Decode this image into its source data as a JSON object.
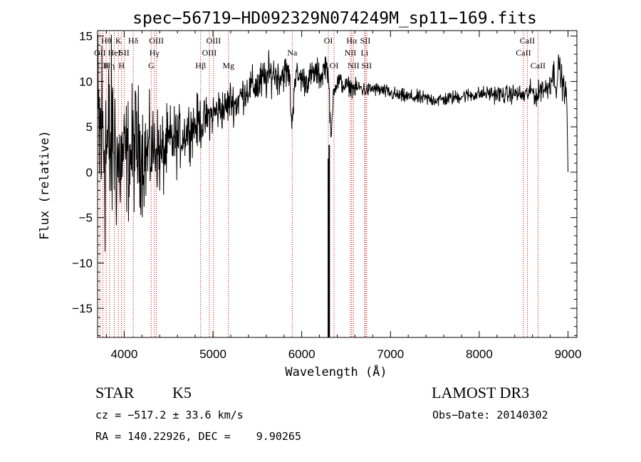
{
  "chart_data": {
    "type": "line",
    "title": "spec−56719−HD092329N074249M_sp11−169.fits",
    "xlabel": "Wavelength (Å)",
    "ylabel": "Flux (relative)",
    "xlim": [
      3700,
      9100
    ],
    "ylim": [
      -18.2,
      15.6
    ],
    "xticks": [
      4000,
      5000,
      6000,
      7000,
      8000,
      9000
    ],
    "xtick_labels": [
      "4000",
      "5000",
      "6000",
      "7000",
      "8000",
      "9000"
    ],
    "yticks": [
      -15,
      -10,
      -5,
      0,
      5,
      10,
      15
    ],
    "ytick_labels": [
      "−15",
      "−10",
      "−5",
      "0",
      "5",
      "10",
      "15"
    ],
    "series": [
      {
        "name": "spectrum",
        "x": [
          3700,
          3760,
          3820,
          3880,
          3940,
          4000,
          4060,
          4120,
          4180,
          4240,
          4300,
          4360,
          4420,
          4480,
          4540,
          4600,
          4660,
          4720,
          4780,
          4840,
          4900,
          4960,
          5020,
          5080,
          5140,
          5200,
          5260,
          5320,
          5380,
          5440,
          5500,
          5560,
          5620,
          5680,
          5740,
          5800,
          5860,
          5890,
          5920,
          5980,
          6040,
          6100,
          6160,
          6220,
          6270,
          6300,
          6330,
          6360,
          6420,
          6480,
          6540,
          6600,
          6660,
          6720,
          6800,
          6900,
          7000,
          7100,
          7200,
          7300,
          7400,
          7500,
          7600,
          7700,
          7800,
          7900,
          8000,
          8100,
          8200,
          8300,
          8400,
          8500,
          8600,
          8650,
          8700,
          8750,
          8800,
          8840,
          8870,
          8900,
          8930,
          8960,
          8985,
          9000
        ],
        "y": [
          3.2,
          4.5,
          2.0,
          3.8,
          0.5,
          2.0,
          1.5,
          3.0,
          2.5,
          1.8,
          2.2,
          3.0,
          1.5,
          2.8,
          3.5,
          3.5,
          4.0,
          4.8,
          5.0,
          5.5,
          5.5,
          6.2,
          6.5,
          7.0,
          7.0,
          8.0,
          7.5,
          8.5,
          9.0,
          9.5,
          9.5,
          10.0,
          10.5,
          11.0,
          10.5,
          11.0,
          10.8,
          4.8,
          10.5,
          10.5,
          10.0,
          10.5,
          11.0,
          10.5,
          12.0,
          11.0,
          3.0,
          9.5,
          10.0,
          9.5,
          9.5,
          9.2,
          9.3,
          9.0,
          9.2,
          9.0,
          8.7,
          8.4,
          8.3,
          8.2,
          8.1,
          8.0,
          8.0,
          8.2,
          8.4,
          8.5,
          8.6,
          8.7,
          8.6,
          8.5,
          8.7,
          8.4,
          9.0,
          8.2,
          9.5,
          9.0,
          10.0,
          11.0,
          9.5,
          12.0,
          10.0,
          9.0,
          8.5,
          0.0
        ],
        "noise": [
          7.0,
          7.0,
          6.0,
          5.0,
          4.0,
          3.0,
          3.5,
          3.5,
          3.2,
          3.0,
          2.5,
          2.2,
          2.5,
          2.0,
          2.0,
          1.8,
          1.5,
          1.5,
          1.5,
          1.5,
          1.2,
          1.2,
          1.2,
          1.2,
          1.1,
          1.1,
          1.1,
          1.0,
          1.0,
          1.0,
          1.2,
          1.2,
          1.2,
          1.0,
          1.0,
          1.0,
          0.9,
          0.9,
          0.9,
          0.8,
          0.8,
          0.8,
          0.8,
          0.8,
          0.7,
          0.7,
          0.7,
          0.6,
          0.6,
          0.5,
          0.5,
          0.5,
          0.5,
          0.4,
          0.4,
          0.4,
          0.4,
          0.4,
          0.4,
          0.4,
          0.4,
          0.4,
          0.4,
          0.4,
          0.4,
          0.4,
          0.4,
          0.4,
          0.5,
          0.5,
          0.5,
          0.5,
          0.6,
          0.6,
          0.7,
          0.8,
          0.8,
          0.8,
          0.8,
          0.8,
          0.8,
          0.7,
          0.6,
          0.0
        ]
      }
    ],
    "spikes": [
      {
        "x": 6300,
        "from": 1.5,
        "to": -18.2
      },
      {
        "x": 6310,
        "from": 3.0,
        "to": -18.2
      }
    ],
    "line_markers": [
      {
        "x": 3727,
        "label": "OII",
        "row": 2
      },
      {
        "x": 3760,
        "label": "CII",
        "row": 3
      },
      {
        "x": 3797,
        "label": "Hθ",
        "row": 1
      },
      {
        "x": 3835,
        "label": "Hη",
        "row": 3
      },
      {
        "x": 3889,
        "label": "HeI",
        "row": 2
      },
      {
        "x": 3934,
        "label": "K",
        "row": 1
      },
      {
        "x": 3970,
        "label": "H",
        "row": 3
      },
      {
        "x": 4000,
        "label": "SII",
        "row": 2
      },
      {
        "x": 4102,
        "label": "Hδ",
        "row": 1
      },
      {
        "x": 4304,
        "label": "G",
        "row": 3
      },
      {
        "x": 4340,
        "label": "Hγ",
        "row": 2
      },
      {
        "x": 4363,
        "label": "OIII",
        "row": 1
      },
      {
        "x": 4861,
        "label": "Hβ",
        "row": 3
      },
      {
        "x": 4959,
        "label": "OIII",
        "row": 2
      },
      {
        "x": 5007,
        "label": "OIII",
        "row": 1
      },
      {
        "x": 5175,
        "label": "Mg",
        "row": 3
      },
      {
        "x": 5893,
        "label": "Na",
        "row": 2
      },
      {
        "x": 6300,
        "label": "OI",
        "row": 1
      },
      {
        "x": 6364,
        "label": "OI",
        "row": 3
      },
      {
        "x": 6548,
        "label": "NII",
        "row": 2
      },
      {
        "x": 6563,
        "label": "Hα",
        "row": 1
      },
      {
        "x": 6583,
        "label": "NII",
        "row": 3
      },
      {
        "x": 6708,
        "label": "Li",
        "row": 2
      },
      {
        "x": 6716,
        "label": "SII",
        "row": 1
      },
      {
        "x": 6731,
        "label": "SII",
        "row": 3
      },
      {
        "x": 8498,
        "label": "CaII",
        "row": 2
      },
      {
        "x": 8542,
        "label": "CaII",
        "row": 1
      },
      {
        "x": 8662,
        "label": "CaII",
        "row": 3
      }
    ],
    "colors": {
      "line": "#000000",
      "marker": "#cc0000",
      "axis": "#000000"
    }
  },
  "info": {
    "class_label": "STAR",
    "subclass": "K5",
    "survey": "LAMOST DR3",
    "cz": "cz = −517.2 ± 33.6 km/s",
    "obs_date": "Obs−Date: 20140302",
    "radec": "RA = 140.22926, DEC =    9.90265"
  }
}
